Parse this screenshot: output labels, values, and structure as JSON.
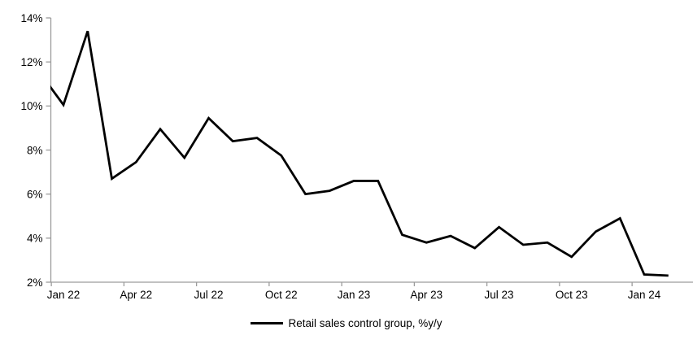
{
  "chart_data": {
    "type": "line",
    "title": "",
    "xlabel": "",
    "ylabel": "",
    "grid": false,
    "legend_position": "bottom-center",
    "axis_color_hex": "#9c9c9c",
    "line_color_hex": "#000000",
    "ylim": [
      2,
      14
    ],
    "y_ticks": [
      2,
      4,
      6,
      8,
      10,
      12,
      14
    ],
    "y_tick_labels": [
      "2%",
      "4%",
      "6%",
      "8%",
      "10%",
      "12%",
      "14%"
    ],
    "x": [
      "Dec 21",
      "Jan 22",
      "Feb 22",
      "Mar 22",
      "Apr 22",
      "May 22",
      "Jun 22",
      "Jul 22",
      "Aug 22",
      "Sep 22",
      "Oct 22",
      "Nov 22",
      "Dec 22",
      "Jan 23",
      "Feb 23",
      "Mar 23",
      "Apr 23",
      "May 23",
      "Jun 23",
      "Jul 23",
      "Aug 23",
      "Sep 23",
      "Oct 23",
      "Nov 23",
      "Dec 23",
      "Jan 24",
      "Feb 24"
    ],
    "x_tick_labels": [
      "Jan 22",
      "Apr 22",
      "Jul 22",
      "Oct 22",
      "Jan 23",
      "Apr 23",
      "Jul 23",
      "Oct 23",
      "Jan 24"
    ],
    "x_tick_month_index": [
      1,
      4,
      7,
      10,
      13,
      16,
      19,
      22,
      25
    ],
    "series": [
      {
        "name": "Retail sales control group, %y/y",
        "color": "#000000",
        "values": [
          11.55,
          10.05,
          13.4,
          6.7,
          7.45,
          8.95,
          7.65,
          9.45,
          8.4,
          8.55,
          7.75,
          6.0,
          6.15,
          6.6,
          6.6,
          4.15,
          3.8,
          4.1,
          3.55,
          4.5,
          3.7,
          3.8,
          3.15,
          4.3,
          4.9,
          2.35,
          2.3
        ]
      }
    ]
  }
}
